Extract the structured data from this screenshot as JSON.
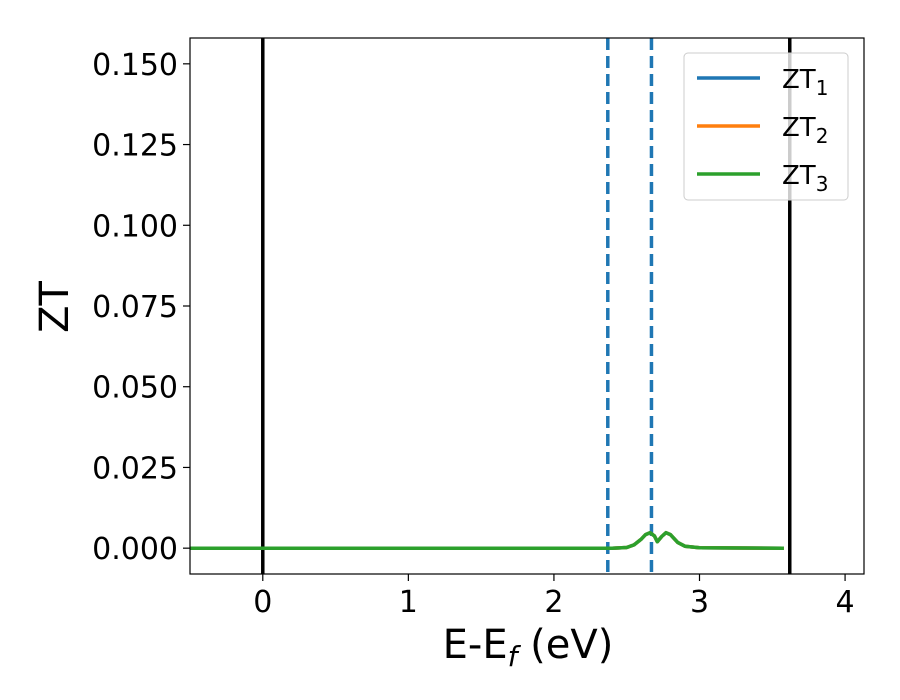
{
  "chart_data": {
    "type": "line",
    "title": "",
    "xlabel_main": "E-E",
    "xlabel_sub": "f",
    "xlabel_unit": " (eV)",
    "ylabel": "ZT",
    "xlim": [
      -0.5,
      4.13
    ],
    "ylim": [
      -0.008,
      0.158
    ],
    "xticks": [
      0,
      1,
      2,
      3,
      4
    ],
    "yticks": [
      0.0,
      0.025,
      0.05,
      0.075,
      0.1,
      0.125,
      0.15
    ],
    "ytick_labels": [
      "0.000",
      "0.025",
      "0.050",
      "0.075",
      "0.100",
      "0.125",
      "0.150"
    ],
    "grid": false,
    "legend_position": "top-right",
    "series": [
      {
        "name": "ZT",
        "subscript": "1",
        "color": "#1f77b4",
        "x": [
          -0.5,
          2.4,
          2.5,
          2.55,
          2.6,
          2.63,
          2.66,
          2.69,
          2.71,
          2.74,
          2.77,
          2.8,
          2.85,
          2.9,
          3.0,
          3.58
        ],
        "y": [
          0,
          0,
          0.0002,
          0.001,
          0.0028,
          0.0042,
          0.0048,
          0.0038,
          0.002,
          0.0036,
          0.0048,
          0.0042,
          0.0018,
          0.0006,
          0.0001,
          0
        ]
      },
      {
        "name": "ZT",
        "subscript": "2",
        "color": "#ff7f0e",
        "x": [
          -0.5,
          2.4,
          2.5,
          2.55,
          2.6,
          2.63,
          2.66,
          2.69,
          2.71,
          2.74,
          2.77,
          2.8,
          2.85,
          2.9,
          3.0,
          3.58
        ],
        "y": [
          0,
          0,
          0.0002,
          0.001,
          0.0028,
          0.0042,
          0.0048,
          0.0038,
          0.002,
          0.0036,
          0.0048,
          0.0042,
          0.0018,
          0.0006,
          0.0001,
          0
        ]
      },
      {
        "name": "ZT",
        "subscript": "3",
        "color": "#2ca02c",
        "x": [
          -0.5,
          2.4,
          2.5,
          2.55,
          2.6,
          2.63,
          2.66,
          2.69,
          2.71,
          2.74,
          2.77,
          2.8,
          2.85,
          2.9,
          3.0,
          3.58
        ],
        "y": [
          0,
          0,
          0.0002,
          0.001,
          0.0028,
          0.0042,
          0.0048,
          0.0038,
          0.002,
          0.0036,
          0.0048,
          0.0042,
          0.0018,
          0.0006,
          0.0001,
          0
        ]
      }
    ],
    "vlines": [
      {
        "x": 0.0,
        "color": "#000000",
        "style": "solid"
      },
      {
        "x": 3.62,
        "color": "#000000",
        "style": "solid"
      },
      {
        "x": 2.37,
        "color": "#1f77b4",
        "style": "dashed"
      },
      {
        "x": 2.67,
        "color": "#1f77b4",
        "style": "dashed"
      }
    ]
  }
}
